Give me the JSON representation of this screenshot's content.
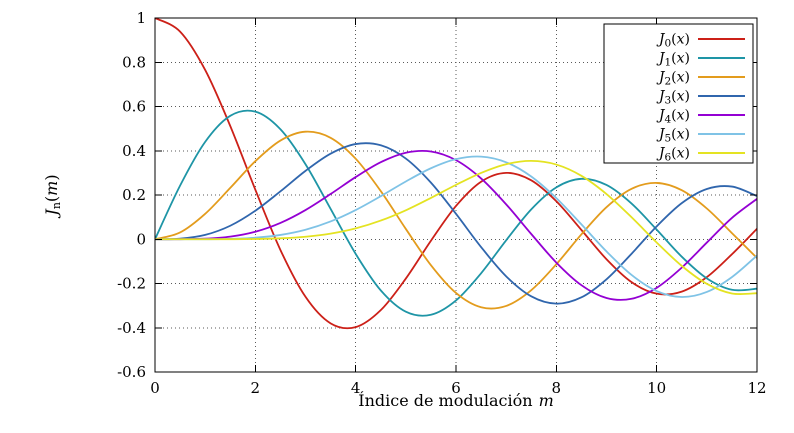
{
  "chart_data": {
    "type": "line",
    "title": "",
    "xlabel": "Índice de modulación m",
    "xlabel_text": "Índice de modulación",
    "xlabel_var": "m",
    "ylabel": "J_n(m)",
    "ylabel_parts": {
      "pre": "J",
      "sub": "n",
      "var": "m"
    },
    "xlim": [
      0,
      12
    ],
    "ylim": [
      -0.6,
      1
    ],
    "grid": true,
    "grid_style": "dotted",
    "legend_position": "top-right",
    "background": "#ffffff",
    "axis_color": "#000000",
    "xticks": [
      {
        "v": 0,
        "label": "0"
      },
      {
        "v": 2,
        "label": "2"
      },
      {
        "v": 4,
        "label": "4"
      },
      {
        "v": 6,
        "label": "6"
      },
      {
        "v": 8,
        "label": "8"
      },
      {
        "v": 10,
        "label": "10"
      },
      {
        "v": 12,
        "label": "12"
      }
    ],
    "yticks": [
      {
        "v": 1,
        "label": "1"
      },
      {
        "v": 0.8,
        "label": "0.8"
      },
      {
        "v": 0.6,
        "label": "0.6"
      },
      {
        "v": 0.4,
        "label": "0.4"
      },
      {
        "v": 0.2,
        "label": "0.2"
      },
      {
        "v": 0,
        "label": "0"
      },
      {
        "v": -0.2,
        "label": "-0.2"
      },
      {
        "v": -0.4,
        "label": "-0.4"
      },
      {
        "v": -0.6,
        "label": "-0.6"
      }
    ],
    "x": [
      0,
      0.5,
      1,
      1.5,
      2,
      2.5,
      3,
      3.5,
      4,
      4.5,
      5,
      5.5,
      6,
      6.5,
      7,
      7.5,
      8,
      8.5,
      9,
      9.5,
      10,
      10.5,
      11,
      11.5,
      12
    ],
    "series": [
      {
        "name": "J_0(x)",
        "legend": {
          "pre": "J",
          "sub": "0",
          "var": "x"
        },
        "color": "#cc2018",
        "values": [
          1.0,
          0.9385,
          0.7652,
          0.5118,
          0.2239,
          -0.0484,
          -0.2601,
          -0.3801,
          -0.3971,
          -0.3205,
          -0.1776,
          -0.0068,
          0.1506,
          0.2601,
          0.3001,
          0.2663,
          0.1717,
          0.0419,
          -0.0903,
          -0.1939,
          -0.2459,
          -0.2366,
          -0.1712,
          -0.0677,
          0.0477
        ]
      },
      {
        "name": "J_1(x)",
        "legend": {
          "pre": "J",
          "sub": "1",
          "var": "x"
        },
        "color": "#1e95a6",
        "values": [
          0,
          0.2423,
          0.4401,
          0.5579,
          0.5767,
          0.4971,
          0.3391,
          0.1374,
          -0.066,
          -0.2311,
          -0.3276,
          -0.3414,
          -0.2767,
          -0.1538,
          -0.0047,
          0.1352,
          0.2346,
          0.2731,
          0.2453,
          0.1613,
          0.0435,
          -0.0788,
          -0.1768,
          -0.2284,
          -0.2234
        ]
      },
      {
        "name": "J_2(x)",
        "legend": {
          "pre": "J",
          "sub": "2",
          "var": "x"
        },
        "color": "#e39c1d",
        "values": [
          0,
          0.0306,
          0.1149,
          0.2321,
          0.3528,
          0.4461,
          0.4861,
          0.4586,
          0.3641,
          0.2178,
          0.0466,
          -0.1173,
          -0.2429,
          -0.3074,
          -0.3014,
          -0.2303,
          -0.113,
          0.0223,
          0.1448,
          0.2279,
          0.2546,
          0.2216,
          0.139,
          0.0279,
          -0.0849
        ]
      },
      {
        "name": "J_3(x)",
        "legend": {
          "pre": "J",
          "sub": "3",
          "var": "x"
        },
        "color": "#3066ad",
        "values": [
          0,
          0.0025,
          0.0196,
          0.061,
          0.1289,
          0.2166,
          0.3091,
          0.3868,
          0.4302,
          0.4247,
          0.3648,
          0.2561,
          0.1148,
          -0.0353,
          -0.1676,
          -0.2581,
          -0.2911,
          -0.2626,
          -0.1809,
          -0.0653,
          0.0584,
          0.1633,
          0.2273,
          0.2381,
          0.1951
        ]
      },
      {
        "name": "J_4(x)",
        "legend": {
          "pre": "J",
          "sub": "4",
          "var": "x"
        },
        "color": "#9400d3",
        "values": [
          0,
          0.0002,
          0.0025,
          0.0117,
          0.034,
          0.0738,
          0.132,
          0.2043,
          0.2811,
          0.3484,
          0.3912,
          0.3967,
          0.3576,
          0.2749,
          0.1578,
          0.0238,
          -0.1054,
          -0.2077,
          -0.2655,
          -0.2691,
          -0.2196,
          -0.1283,
          -0.015,
          0.0963,
          0.1825
        ]
      },
      {
        "name": "J_5(x)",
        "legend": {
          "pre": "J",
          "sub": "5",
          "var": "x"
        },
        "color": "#7fc3e6",
        "values": [
          0,
          0.0,
          0.0002,
          0.0018,
          0.007,
          0.0195,
          0.043,
          0.0804,
          0.1321,
          0.1947,
          0.2611,
          0.3209,
          0.3621,
          0.3736,
          0.3479,
          0.2835,
          0.1858,
          0.0671,
          -0.055,
          -0.1613,
          -0.2341,
          -0.2611,
          -0.2383,
          -0.1711,
          -0.0735
        ]
      },
      {
        "name": "J_6(x)",
        "legend": {
          "pre": "J",
          "sub": "6",
          "var": "x"
        },
        "color": "#e4e322",
        "values": [
          0,
          0.0,
          0.0,
          0.0002,
          0.0012,
          0.0042,
          0.0114,
          0.0254,
          0.0491,
          0.0844,
          0.131,
          0.1868,
          0.2458,
          0.2999,
          0.3392,
          0.3541,
          0.3376,
          0.2867,
          0.2043,
          0.0993,
          -0.0145,
          -0.1203,
          -0.2016,
          -0.2451,
          -0.2437
        ]
      }
    ]
  }
}
